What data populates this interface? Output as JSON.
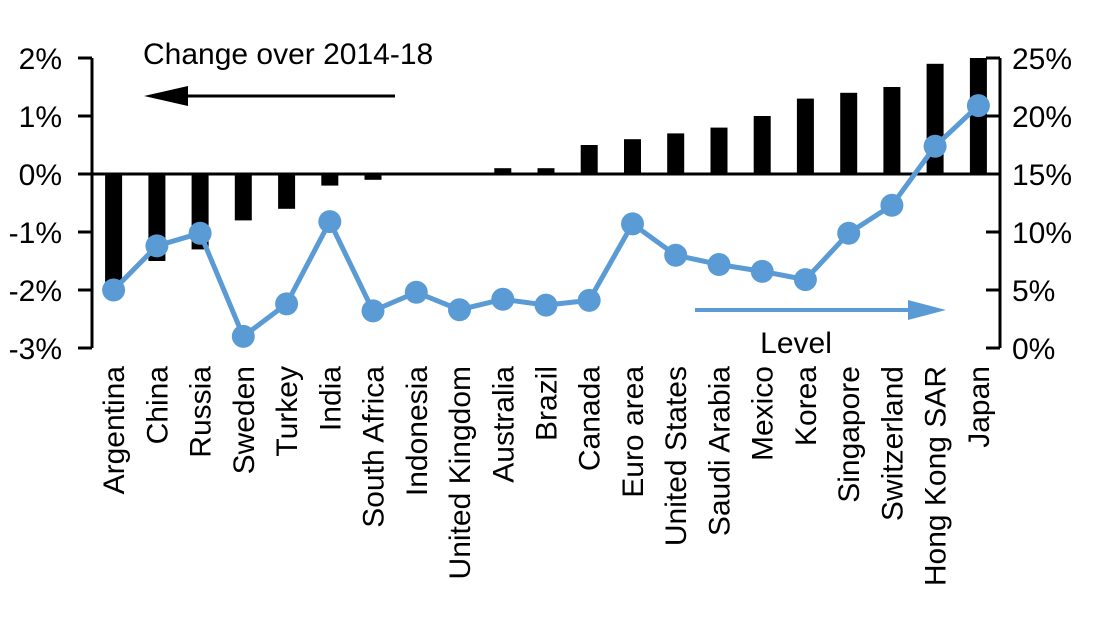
{
  "chart_data": {
    "type": "bar",
    "subtype": "combo-bar-line-dual-axis",
    "categories": [
      "Argentina",
      "China",
      "Russia",
      "Sweden",
      "Turkey",
      "India",
      "South Africa",
      "Indonesia",
      "United Kingdom",
      "Australia",
      "Brazil",
      "Canada",
      "Euro area",
      "United States",
      "Saudi Arabia",
      "Mexico",
      "Korea",
      "Singapore",
      "Switzerland",
      "Hong Kong SAR",
      "Japan"
    ],
    "series": [
      {
        "name": "Change over 2014-18",
        "type": "bar",
        "axis": "left",
        "color": "#000000",
        "values": [
          -1.9,
          -1.5,
          -1.3,
          -0.8,
          -0.6,
          -0.2,
          -0.1,
          0,
          0,
          0.1,
          0.1,
          0.5,
          0.6,
          0.7,
          0.8,
          1.0,
          1.3,
          1.4,
          1.5,
          1.9,
          2.0
        ]
      },
      {
        "name": "Level",
        "type": "line",
        "axis": "right",
        "color": "#5B9BD5",
        "values": [
          5.0,
          8.8,
          9.9,
          1.0,
          3.8,
          10.9,
          3.2,
          4.8,
          3.3,
          4.2,
          3.7,
          4.1,
          10.7,
          8.0,
          7.2,
          6.6,
          5.9,
          9.9,
          12.3,
          17.4,
          20.9
        ]
      }
    ],
    "left_axis": {
      "min": -3,
      "max": 2,
      "tick_step": 1,
      "tick_labels": [
        "2%",
        "1%",
        "0%",
        "-1%",
        "-2%",
        "-3%"
      ]
    },
    "right_axis": {
      "min": 0,
      "max": 25,
      "tick_step": 5,
      "tick_labels": [
        "25%",
        "20%",
        "15%",
        "10%",
        "5%",
        "0%"
      ]
    },
    "annotations": {
      "left_arrow_label": "Change over 2014-18",
      "right_arrow_label": "Level"
    },
    "grid": false,
    "legend_position": "none",
    "x_label_rotation_degrees": 90
  },
  "colors": {
    "bar": "#000000",
    "line": "#5B9BD5",
    "axis": "#000000",
    "background": "#FFFFFF"
  }
}
